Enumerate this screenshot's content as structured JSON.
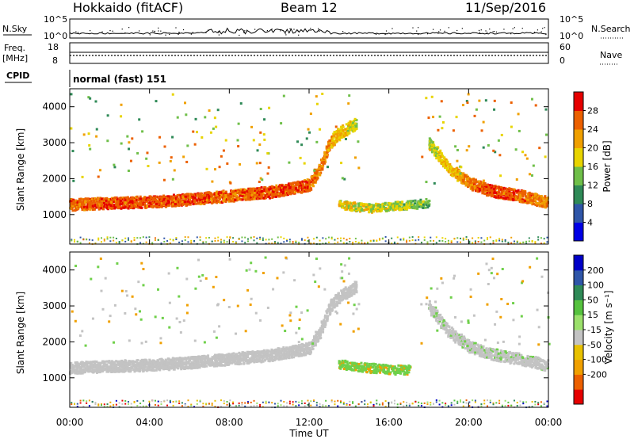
{
  "header": {
    "site": "Hokkaido (fitACF)",
    "beam": "Beam 12",
    "date": "11/Sep/2016"
  },
  "status_panel": {
    "nsky_label": "N.Sky",
    "nsky_ticks": [
      "10^5",
      "10^0"
    ],
    "nsearch_label": "N.Search",
    "nsearch_ticks": [
      "10^5",
      "10^0"
    ],
    "freq_label": "Freq.",
    "freq_unit": "[MHz]",
    "freq_ticks": [
      "18",
      "8"
    ],
    "nave_label": "Nave",
    "nave_ticks": [
      "60",
      "0"
    ],
    "cpid_label": "CPID",
    "cpid_value": "normal (fast) 151"
  },
  "colors": {
    "axis": "#000000",
    "power_scale": [
      "#0000e6",
      "#2f56a8",
      "#2f8a57",
      "#6fbf49",
      "#e8d400",
      "#f0a000",
      "#ec6000",
      "#e60000"
    ],
    "velocity_scale": [
      "#e60000",
      "#ec6000",
      "#f0a000",
      "#e8c100",
      "#c3c3c3",
      "#9be06b",
      "#56c23e",
      "#2f8a57",
      "#2f56a8",
      "#0000c8"
    ],
    "ground_scatter": "#c3c3c3"
  },
  "chart_data": [
    {
      "type": "heatmap",
      "ylabel": "Slant Range [km]",
      "xlabel": "Time UT",
      "x_ticks": [
        "00:00",
        "04:00",
        "08:00",
        "12:00",
        "16:00",
        "20:00",
        "00:00"
      ],
      "y_ticks": [
        "1000",
        "2000",
        "3000",
        "4000"
      ],
      "xlim_hours": [
        0,
        24
      ],
      "ylim_km": [
        180,
        4500
      ],
      "colorbar": {
        "label": "Power [dB]",
        "ticks": [
          "4",
          "8",
          "12",
          "16",
          "20",
          "24",
          "28"
        ],
        "range": [
          0,
          30
        ]
      },
      "main_echo_band": {
        "times_h": [
          0,
          2,
          4,
          6,
          8,
          10,
          11,
          12,
          12.5,
          13,
          13.5,
          14,
          14.3
        ],
        "range_center_km": [
          1300,
          1350,
          1380,
          1450,
          1550,
          1650,
          1750,
          1850,
          2300,
          3000,
          3300,
          3450,
          3550
        ],
        "power_db": [
          27,
          28,
          28,
          28,
          27,
          28,
          28,
          28,
          26,
          24,
          22,
          20,
          18
        ]
      },
      "secondary_echo_band": {
        "times_h": [
          13.5,
          15,
          16,
          17,
          18
        ],
        "range_center_km": [
          1300,
          1200,
          1250,
          1300,
          1350
        ],
        "power_db": [
          22,
          20,
          20,
          18,
          16
        ]
      },
      "evening_echo_band": {
        "times_h": [
          18,
          19,
          20,
          21,
          22,
          23,
          24
        ],
        "range_center_km": [
          3000,
          2300,
          1900,
          1700,
          1600,
          1500,
          1350
        ],
        "power_db": [
          18,
          22,
          26,
          28,
          28,
          27,
          25
        ]
      },
      "near_range_band": {
        "range_km": [
          200,
          400
        ],
        "power_db": 10
      }
    },
    {
      "type": "heatmap",
      "ylabel": "Slant Range [km]",
      "xlabel": "Time UT",
      "x_ticks": [
        "00:00",
        "04:00",
        "08:00",
        "12:00",
        "16:00",
        "20:00",
        "00:00"
      ],
      "y_ticks": [
        "1000",
        "2000",
        "3000",
        "4000"
      ],
      "xlim_hours": [
        0,
        24
      ],
      "ylim_km": [
        180,
        4500
      ],
      "colorbar": {
        "label": "Velocity [m s⁻¹]",
        "ticks": [
          "200",
          "100",
          "50",
          "15",
          "-15",
          "-50",
          "-100",
          "-200"
        ],
        "range": [
          -250,
          250
        ]
      },
      "ground_scatter_band": {
        "times_h": [
          0,
          2,
          4,
          6,
          8,
          10,
          12,
          12.5,
          13,
          13.5,
          14,
          14.3
        ],
        "range_center_km": [
          1300,
          1350,
          1380,
          1450,
          1550,
          1650,
          1850,
          2300,
          3000,
          3300,
          3450,
          3550
        ]
      },
      "positive_velocity_patch": {
        "times_h": [
          13.5,
          15,
          16,
          17
        ],
        "range_center_km": [
          1400,
          1300,
          1250,
          1250
        ],
        "velocity_ms": 40
      },
      "evening_band": {
        "times_h": [
          18,
          19,
          20,
          21,
          22,
          23,
          24
        ],
        "range_center_km": [
          3000,
          2300,
          1900,
          1700,
          1600,
          1500,
          1350
        ]
      }
    }
  ]
}
